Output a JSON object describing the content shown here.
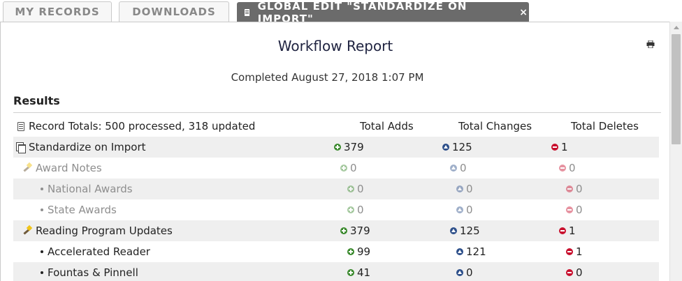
{
  "tabs": [
    {
      "label": "MY RECORDS"
    },
    {
      "label": "DOWNLOADS"
    },
    {
      "label": "GLOBAL EDIT \"STANDARDIZE ON IMPORT\"",
      "close": "×"
    }
  ],
  "report": {
    "title": "Workflow Report",
    "completed": "Completed August 27, 2018 1:07 PM",
    "results_heading": "Results",
    "totals_label": "Record Totals: 500 processed, 318 updated",
    "columns": {
      "adds": "Total Adds",
      "changes": "Total Changes",
      "deletes": "Total Deletes"
    }
  },
  "rows": [
    {
      "label": "Standardize on Import",
      "adds": "379",
      "changes": "125",
      "deletes": "1"
    },
    {
      "label": "Award Notes",
      "adds": "0",
      "changes": "0",
      "deletes": "0"
    },
    {
      "label": "National Awards",
      "adds": "0",
      "changes": "0",
      "deletes": "0"
    },
    {
      "label": "State Awards",
      "adds": "0",
      "changes": "0",
      "deletes": "0"
    },
    {
      "label": "Reading Program Updates",
      "adds": "379",
      "changes": "125",
      "deletes": "1"
    },
    {
      "label": "Accelerated Reader",
      "adds": "99",
      "changes": "121",
      "deletes": "1"
    },
    {
      "label": "Fountas & Pinnell",
      "adds": "41",
      "changes": "0",
      "deletes": "0"
    }
  ],
  "colors": {
    "add": "#3b8a2e",
    "change": "#2d4f8a",
    "delete": "#c8102e",
    "active_tab": "#6b6b6b"
  }
}
